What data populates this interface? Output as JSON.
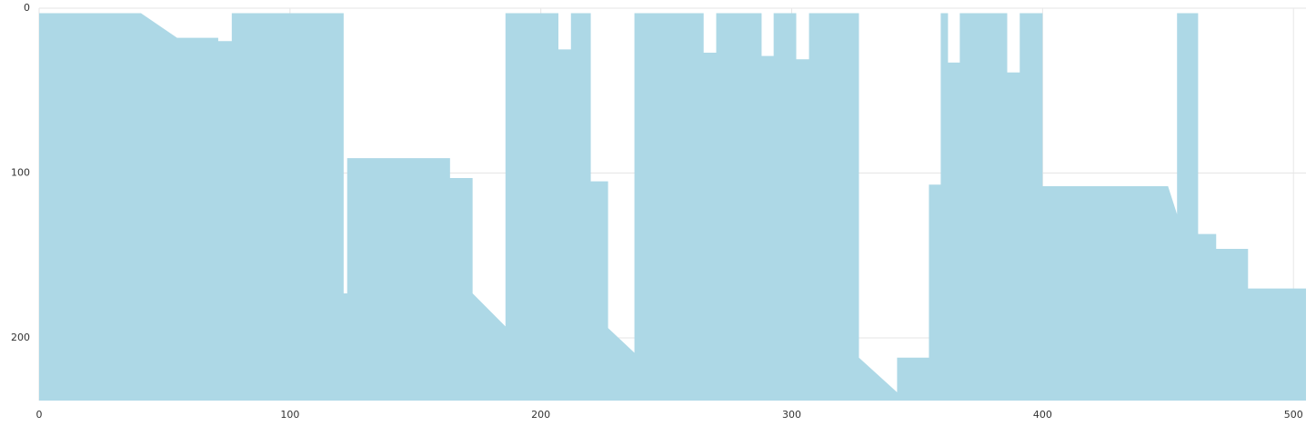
{
  "chart_data": {
    "type": "area",
    "color": "#add8e6",
    "grid": true,
    "x": [
      0,
      40.6,
      55,
      71.4,
      71.4,
      76.8,
      76.8,
      121.4,
      121.4,
      122.8,
      122.8,
      163.8,
      163.8,
      172.8,
      172.8,
      185.9,
      185.9,
      207,
      207,
      212,
      212,
      219.9,
      219.9,
      226.8,
      226.8,
      237.3,
      237.3,
      264.9,
      264.9,
      269.9,
      269.9,
      288,
      288,
      292.8,
      292.8,
      301.8,
      301.8,
      306.9,
      306.9,
      326.8,
      326.8,
      342,
      342,
      354.7,
      354.7,
      359.4,
      359.4,
      362.3,
      362.3,
      367,
      367,
      385.9,
      385.9,
      390.9,
      390.9,
      400,
      400,
      450,
      453.6,
      453.6,
      462,
      462,
      469.2,
      469.2,
      481.9,
      481.9,
      505
    ],
    "values": [
      3,
      3,
      18,
      18,
      20,
      20,
      3,
      3,
      173,
      173,
      91,
      91,
      103,
      103,
      173,
      193,
      3,
      3,
      25,
      25,
      3,
      3,
      105,
      105,
      194,
      209,
      3,
      3,
      27,
      27,
      3,
      3,
      29,
      29,
      3,
      3,
      31,
      31,
      3,
      3,
      212,
      233,
      212,
      212,
      107,
      107,
      3,
      3,
      33,
      33,
      3,
      3,
      39,
      39,
      3,
      3,
      108,
      108,
      125,
      3,
      3,
      137,
      137,
      146,
      146,
      170,
      170
    ],
    "xlim": [
      0,
      505
    ],
    "xticks": [
      0,
      100,
      200,
      300,
      400,
      500
    ],
    "ylim": [
      238,
      0
    ],
    "yticks": [
      0,
      100,
      200
    ]
  }
}
